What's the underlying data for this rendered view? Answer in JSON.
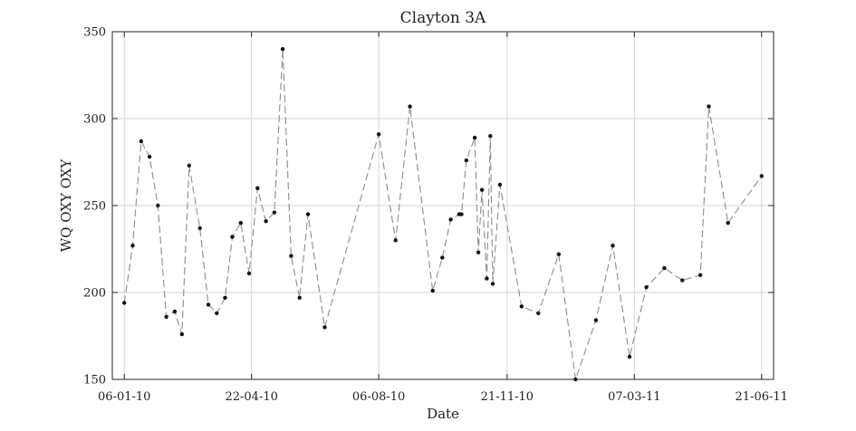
{
  "chart_data": {
    "type": "line",
    "title": "Clayton 3A",
    "xlabel": "Date",
    "ylabel": "WQ OXY OXY",
    "xlim": [
      "2009-12-27",
      "2011-07-01"
    ],
    "ylim": [
      150,
      350
    ],
    "grid": true,
    "x_ticks": [
      {
        "date": "2010-01-06",
        "label": "06-01-10"
      },
      {
        "date": "2010-04-22",
        "label": "22-04-10"
      },
      {
        "date": "2010-08-06",
        "label": "06-08-10"
      },
      {
        "date": "2010-11-21",
        "label": "21-11-10"
      },
      {
        "date": "2011-03-07",
        "label": "07-03-11"
      },
      {
        "date": "2011-06-21",
        "label": "21-06-11"
      }
    ],
    "y_ticks": [
      150,
      200,
      250,
      300,
      350
    ],
    "series": [
      {
        "line_style": "dashed",
        "line_color": "#8c8c8c",
        "marker_color": "#111111",
        "x": [
          "2010-01-06",
          "2010-01-13",
          "2010-01-20",
          "2010-01-27",
          "2010-02-03",
          "2010-02-10",
          "2010-02-17",
          "2010-02-23",
          "2010-03-01",
          "2010-03-10",
          "2010-03-17",
          "2010-03-24",
          "2010-03-31",
          "2010-04-06",
          "2010-04-13",
          "2010-04-20",
          "2010-04-27",
          "2010-05-04",
          "2010-05-11",
          "2010-05-18",
          "2010-05-25",
          "2010-06-01",
          "2010-06-08",
          "2010-06-22",
          "2010-08-06",
          "2010-08-20",
          "2010-09-01",
          "2010-09-20",
          "2010-09-28",
          "2010-10-05",
          "2010-10-12",
          "2010-10-14",
          "2010-10-18",
          "2010-10-25",
          "2010-10-28",
          "2010-10-31",
          "2010-11-04",
          "2010-11-07",
          "2010-11-09",
          "2010-11-15",
          "2010-12-03",
          "2010-12-17",
          "2011-01-03",
          "2011-01-17",
          "2011-02-03",
          "2011-02-17",
          "2011-03-03",
          "2011-03-17",
          "2011-04-01",
          "2011-04-16",
          "2011-05-01",
          "2011-05-08",
          "2011-05-24",
          "2011-06-21"
        ],
        "y": [
          194,
          227,
          287,
          278,
          250,
          186,
          189,
          176,
          273,
          237,
          193,
          188,
          197,
          232,
          240,
          211,
          260,
          241,
          246,
          340,
          221,
          197,
          245,
          180,
          291,
          230,
          307,
          201,
          220,
          242,
          245,
          245,
          276,
          289,
          223,
          259,
          208,
          290,
          205,
          262,
          192,
          188,
          222,
          150,
          184,
          227,
          163,
          203,
          214,
          207,
          210,
          307,
          240,
          267
        ]
      }
    ]
  }
}
